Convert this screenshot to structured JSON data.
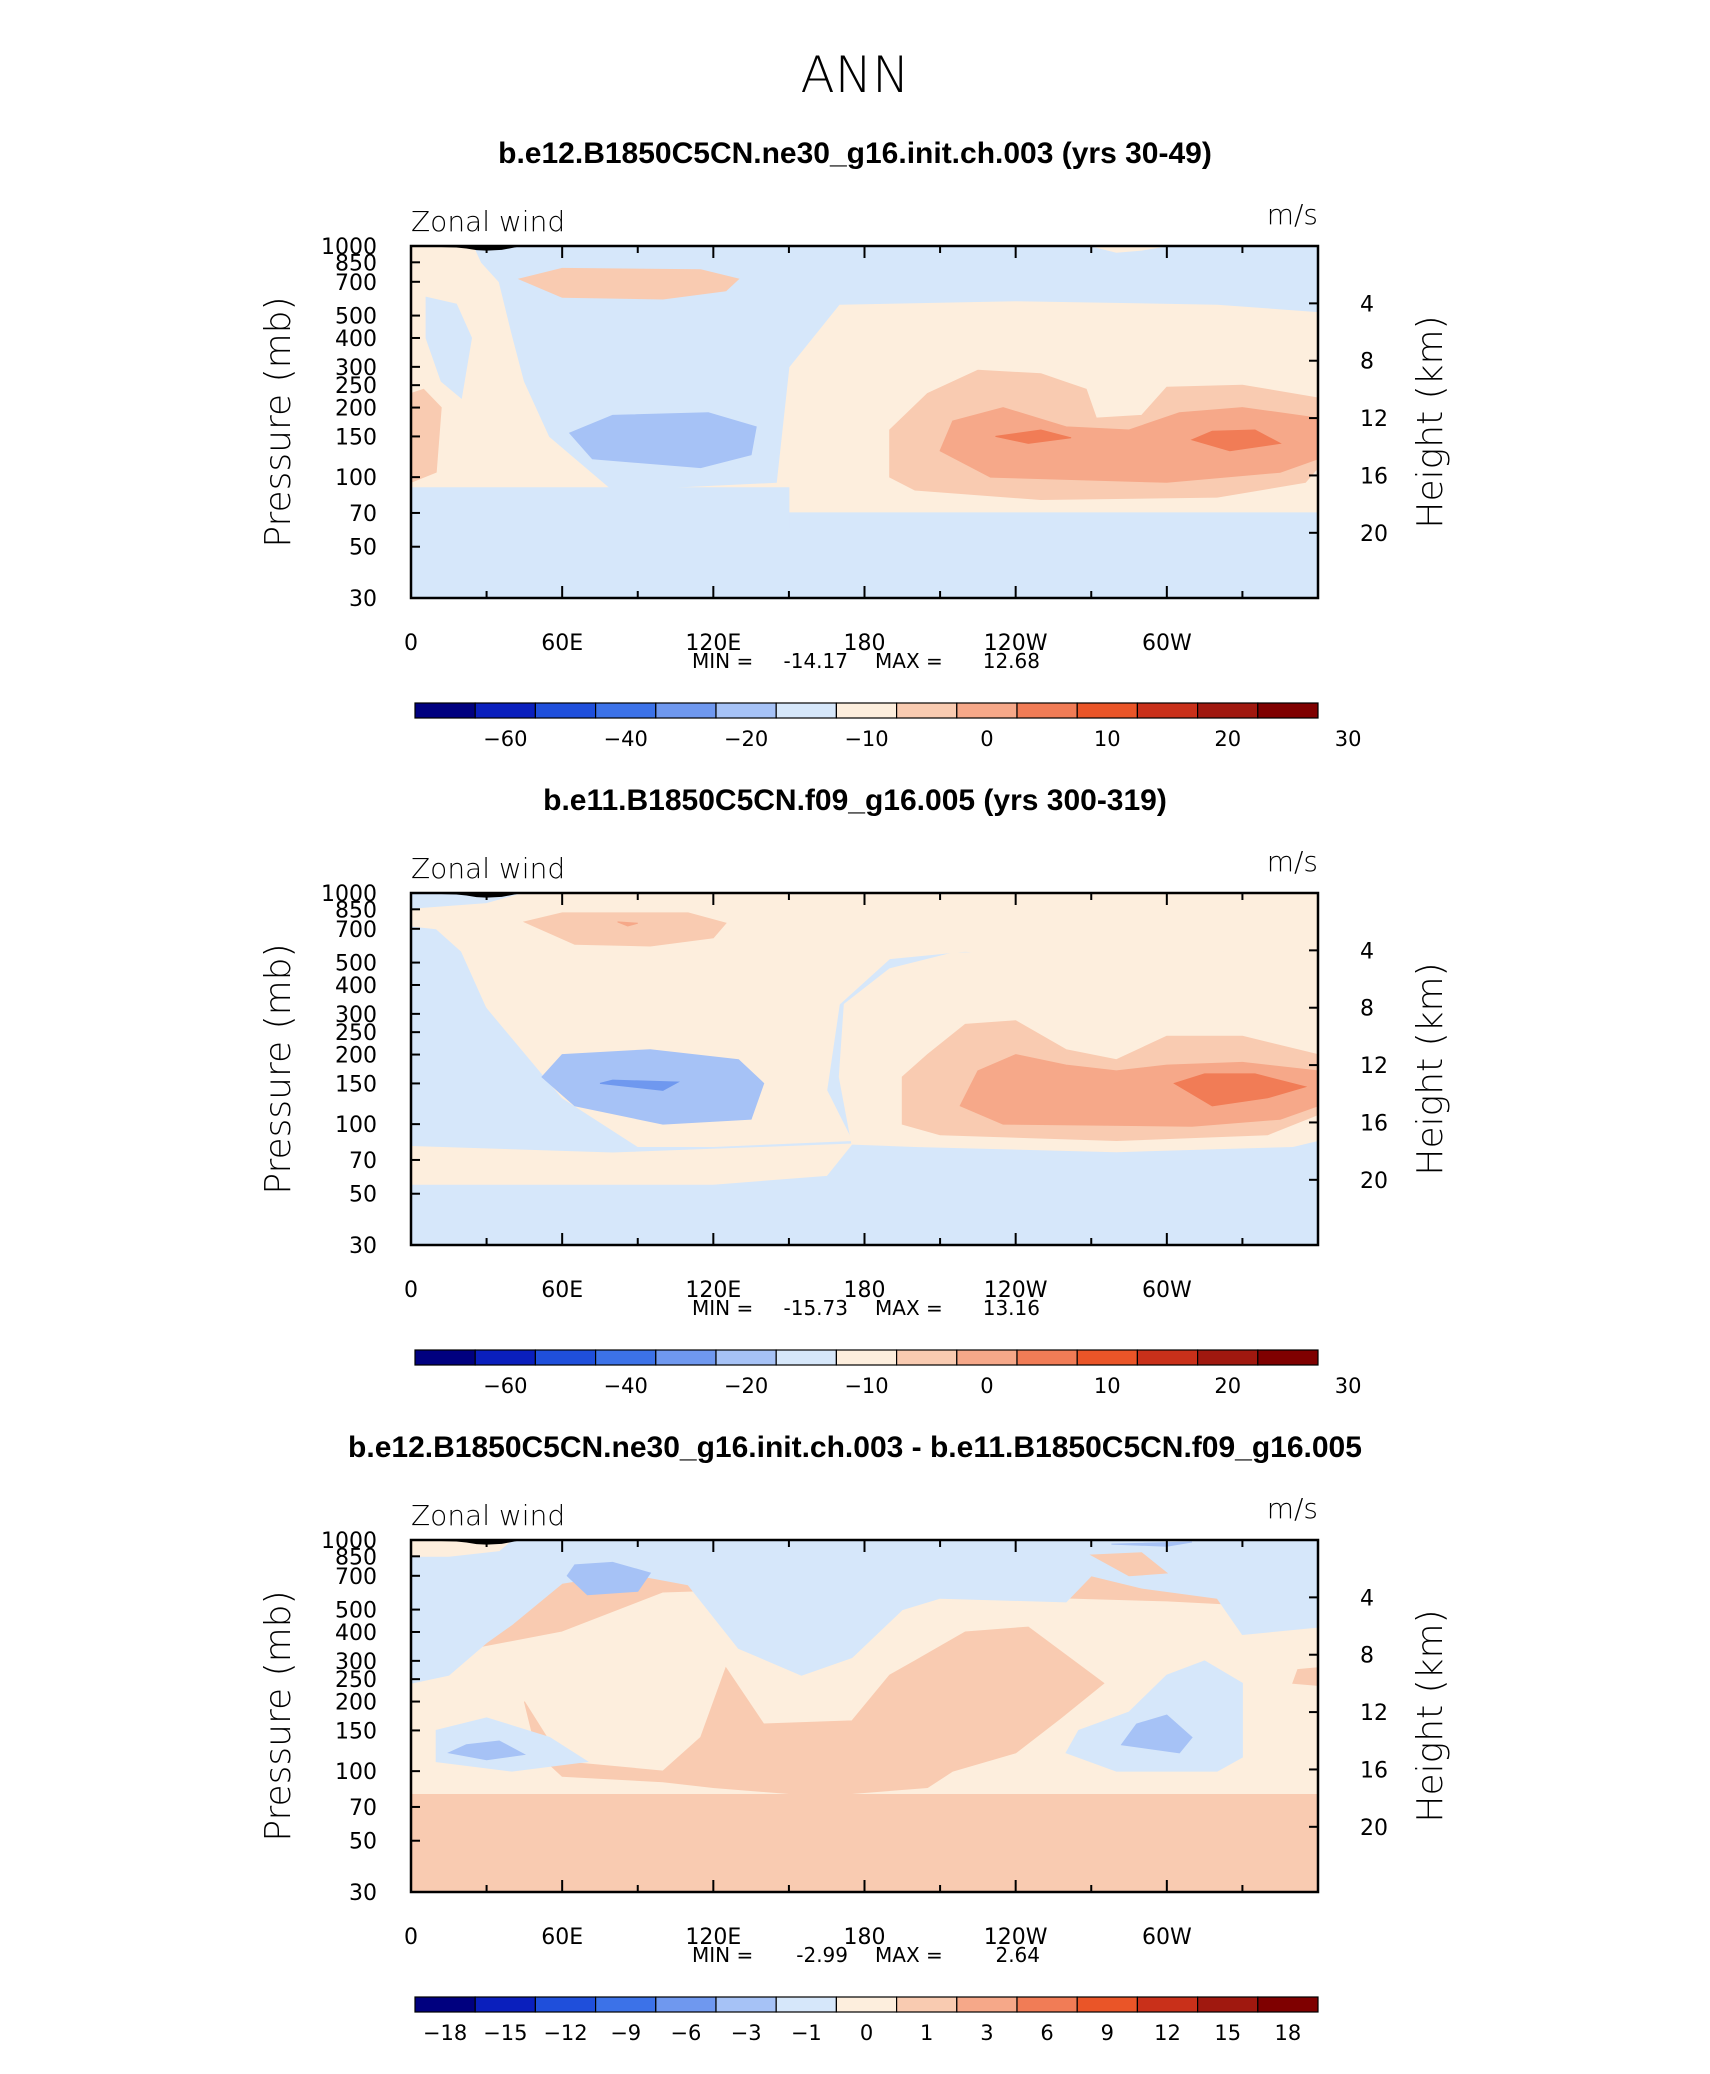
{
  "page_title": "ANN",
  "shared": {
    "field_label": "Zonal wind",
    "units": "m/s",
    "left_axis_label": "Pressure (mb)",
    "right_axis_label": "Height (km)",
    "pressure_ticks": [
      "30",
      "50",
      "70",
      "100",
      "150",
      "200",
      "250",
      "300",
      "400",
      "500",
      "700",
      "850",
      "1000"
    ],
    "height_ticks": [
      "20",
      "16",
      "12",
      "8",
      "4"
    ],
    "longitude_ticks": [
      "0",
      "60E",
      "120E",
      "180",
      "120W",
      "60W"
    ]
  },
  "chart_data": [
    {
      "type": "heatmap",
      "title": "b.e12.B1850C5CN.ne30_g16.init.ch.003 (yrs 30-49)",
      "stats": {
        "min_label": "MIN =",
        "min": "-14.17",
        "max_label": "MAX =",
        "max": "12.68"
      },
      "x_range": [
        0,
        360
      ],
      "y_range_mb": [
        1000,
        30
      ],
      "colorbar": {
        "colors": [
          "#00007f",
          "#0a1fbd",
          "#1f4fdb",
          "#3c72e8",
          "#6f98ef",
          "#a6c2f6",
          "#d6e7fa",
          "#fdeedd",
          "#f9cbb1",
          "#f6a889",
          "#f17c56",
          "#ea5528",
          "#c9301a",
          "#a0180f",
          "#7f0000"
        ],
        "labels": [
          "-60",
          "-40",
          "-20",
          "-10",
          "0",
          "10",
          "20",
          "30"
        ]
      }
    },
    {
      "type": "heatmap",
      "title": "b.e11.B1850C5CN.f09_g16.005 (yrs 300-319)",
      "stats": {
        "min_label": "MIN =",
        "min": "-15.73",
        "max_label": "MAX =",
        "max": "13.16"
      },
      "x_range": [
        0,
        360
      ],
      "y_range_mb": [
        1000,
        30
      ],
      "colorbar": {
        "colors": [
          "#00007f",
          "#0a1fbd",
          "#1f4fdb",
          "#3c72e8",
          "#6f98ef",
          "#a6c2f6",
          "#d6e7fa",
          "#fdeedd",
          "#f9cbb1",
          "#f6a889",
          "#f17c56",
          "#ea5528",
          "#c9301a",
          "#a0180f",
          "#7f0000"
        ],
        "labels": [
          "-60",
          "-40",
          "-20",
          "-10",
          "0",
          "10",
          "20",
          "30"
        ]
      }
    },
    {
      "type": "heatmap",
      "title": "b.e12.B1850C5CN.ne30_g16.init.ch.003 - b.e11.B1850C5CN.f09_g16.005",
      "stats": {
        "min_label": "MIN =",
        "min": "-2.99",
        "max_label": "MAX =",
        "max": "2.64"
      },
      "x_range": [
        0,
        360
      ],
      "y_range_mb": [
        1000,
        30
      ],
      "colorbar": {
        "colors": [
          "#00007f",
          "#0a1fbd",
          "#1f4fdb",
          "#3c72e8",
          "#6f98ef",
          "#a6c2f6",
          "#d6e7fa",
          "#fdeedd",
          "#f9cbb1",
          "#f6a889",
          "#f17c56",
          "#ea5528",
          "#c9301a",
          "#a0180f",
          "#7f0000"
        ],
        "labels": [
          "-18",
          "-15",
          "-12",
          "-9",
          "-6",
          "-3",
          "-1",
          "0",
          "1",
          "3",
          "6",
          "9",
          "12",
          "15",
          "18"
        ]
      }
    }
  ]
}
